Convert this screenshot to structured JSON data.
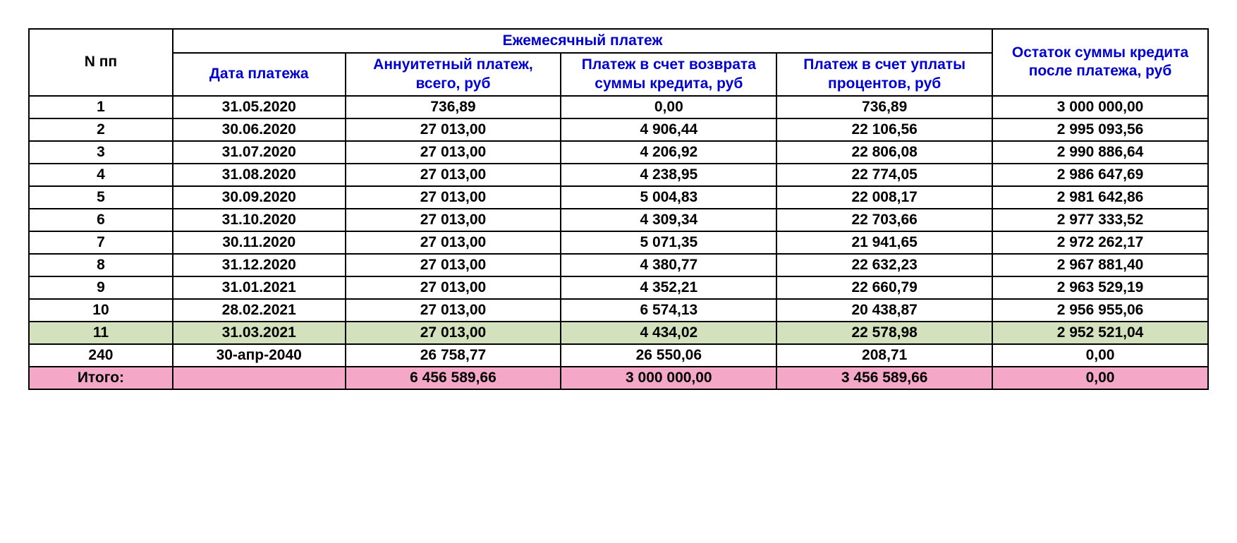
{
  "table": {
    "columns": {
      "num": "N пп",
      "group": "Ежемесячный платеж",
      "date": "Дата платежа",
      "annuity": "Аннуитетный платеж, всего, руб",
      "principal": "Платеж в счет возврата суммы кредита, руб",
      "interest": "Платеж в счет уплаты процентов, руб",
      "balance": "Остаток суммы кредита после платежа, руб"
    },
    "rows": [
      {
        "num": "1",
        "date": "31.05.2020",
        "annuity": "736,89",
        "principal": "0,00",
        "interest": "736,89",
        "balance": "3 000 000,00",
        "hl": ""
      },
      {
        "num": "2",
        "date": "30.06.2020",
        "annuity": "27 013,00",
        "principal": "4 906,44",
        "interest": "22 106,56",
        "balance": "2 995 093,56",
        "hl": ""
      },
      {
        "num": "3",
        "date": "31.07.2020",
        "annuity": "27 013,00",
        "principal": "4 206,92",
        "interest": "22 806,08",
        "balance": "2 990 886,64",
        "hl": ""
      },
      {
        "num": "4",
        "date": "31.08.2020",
        "annuity": "27 013,00",
        "principal": "4 238,95",
        "interest": "22 774,05",
        "balance": "2 986 647,69",
        "hl": ""
      },
      {
        "num": "5",
        "date": "30.09.2020",
        "annuity": "27 013,00",
        "principal": "5 004,83",
        "interest": "22 008,17",
        "balance": "2 981 642,86",
        "hl": ""
      },
      {
        "num": "6",
        "date": "31.10.2020",
        "annuity": "27 013,00",
        "principal": "4 309,34",
        "interest": "22 703,66",
        "balance": "2 977 333,52",
        "hl": ""
      },
      {
        "num": "7",
        "date": "30.11.2020",
        "annuity": "27 013,00",
        "principal": "5 071,35",
        "interest": "21 941,65",
        "balance": "2 972 262,17",
        "hl": ""
      },
      {
        "num": "8",
        "date": "31.12.2020",
        "annuity": "27 013,00",
        "principal": "4 380,77",
        "interest": "22 632,23",
        "balance": "2 967 881,40",
        "hl": ""
      },
      {
        "num": "9",
        "date": "31.01.2021",
        "annuity": "27 013,00",
        "principal": "4 352,21",
        "interest": "22 660,79",
        "balance": "2 963 529,19",
        "hl": ""
      },
      {
        "num": "10",
        "date": "28.02.2021",
        "annuity": "27 013,00",
        "principal": "6 574,13",
        "interest": "20 438,87",
        "balance": "2 956 955,06",
        "hl": ""
      },
      {
        "num": "11",
        "date": "31.03.2021",
        "annuity": "27 013,00",
        "principal": "4 434,02",
        "interest": "22 578,98",
        "balance": "2 952 521,04",
        "hl": "green"
      },
      {
        "num": "240",
        "date": "30-апр-2040",
        "annuity": "26 758,77",
        "principal": "26 550,06",
        "interest": "208,71",
        "balance": "0,00",
        "hl": ""
      },
      {
        "num": "Итого:",
        "date": "",
        "annuity": "6 456 589,66",
        "principal": "3 000 000,00",
        "interest": "3 456 589,66",
        "balance": "0,00",
        "hl": "pink"
      }
    ],
    "style": {
      "header_color": "#0000d0",
      "text_color": "#000000",
      "border_color": "#000000",
      "highlight_green": "#d3e2bd",
      "highlight_pink": "#f4a7c7",
      "background": "#ffffff",
      "font_size_pt": 16,
      "font_weight": "bold",
      "font_family": "Arial"
    }
  }
}
